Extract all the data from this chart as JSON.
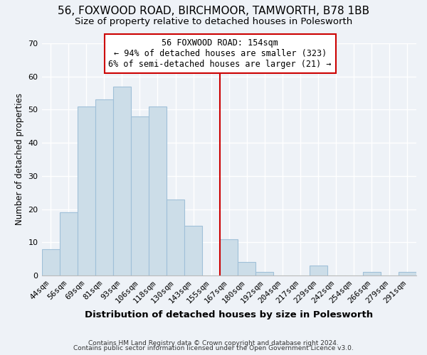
{
  "title": "56, FOXWOOD ROAD, BIRCHMOOR, TAMWORTH, B78 1BB",
  "subtitle": "Size of property relative to detached houses in Polesworth",
  "xlabel": "Distribution of detached houses by size in Polesworth",
  "ylabel": "Number of detached properties",
  "bar_labels": [
    "44sqm",
    "56sqm",
    "69sqm",
    "81sqm",
    "93sqm",
    "106sqm",
    "118sqm",
    "130sqm",
    "143sqm",
    "155sqm",
    "167sqm",
    "180sqm",
    "192sqm",
    "204sqm",
    "217sqm",
    "229sqm",
    "242sqm",
    "254sqm",
    "266sqm",
    "279sqm",
    "291sqm"
  ],
  "bar_values": [
    8,
    19,
    51,
    53,
    57,
    48,
    51,
    23,
    15,
    0,
    11,
    4,
    1,
    0,
    0,
    3,
    0,
    0,
    1,
    0,
    1
  ],
  "bar_color": "#ccdde8",
  "bar_edge_color": "#a0c0d8",
  "ylim": [
    0,
    70
  ],
  "yticks": [
    0,
    10,
    20,
    30,
    40,
    50,
    60,
    70
  ],
  "vline_color": "#cc0000",
  "annotation_title": "56 FOXWOOD ROAD: 154sqm",
  "annotation_line1": "← 94% of detached houses are smaller (323)",
  "annotation_line2": "6% of semi-detached houses are larger (21) →",
  "footer1": "Contains HM Land Registry data © Crown copyright and database right 2024.",
  "footer2": "Contains public sector information licensed under the Open Government Licence v3.0.",
  "background_color": "#eef2f7",
  "plot_background": "#eef2f7",
  "grid_color": "#ffffff",
  "title_fontsize": 11,
  "subtitle_fontsize": 9.5,
  "xlabel_fontsize": 9.5,
  "ylabel_fontsize": 8.5,
  "tick_fontsize": 8,
  "annotation_fontsize": 8.5,
  "footer_fontsize": 6.5
}
